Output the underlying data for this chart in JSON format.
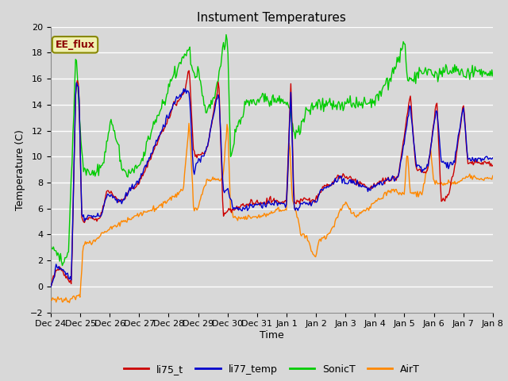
{
  "title": "Instument Temperatures",
  "xlabel": "Time",
  "ylabel": "Temperature (C)",
  "ylim": [
    -2,
    20
  ],
  "background_color": "#d8d8d8",
  "plot_bg_color": "#d8d8d8",
  "grid_color": "white",
  "annotation_text": "EE_flux",
  "annotation_bg": "#f0f0b0",
  "annotation_border": "#888800",
  "colors": {
    "li75_t": "#cc0000",
    "li77_temp": "#0000cc",
    "SonicT": "#00cc00",
    "AirT": "#ff8800"
  },
  "x_tick_labels": [
    "Dec 24",
    "Dec 25",
    "Dec 26",
    "Dec 27",
    "Dec 28",
    "Dec 29",
    "Dec 30",
    "Dec 31",
    "Jan 1",
    "Jan 2",
    "Jan 3",
    "Jan 4",
    "Jan 5",
    "Jan 6",
    "Jan 7",
    "Jan 8"
  ],
  "legend": [
    "li75_t",
    "li77_temp",
    "SonicT",
    "AirT"
  ]
}
